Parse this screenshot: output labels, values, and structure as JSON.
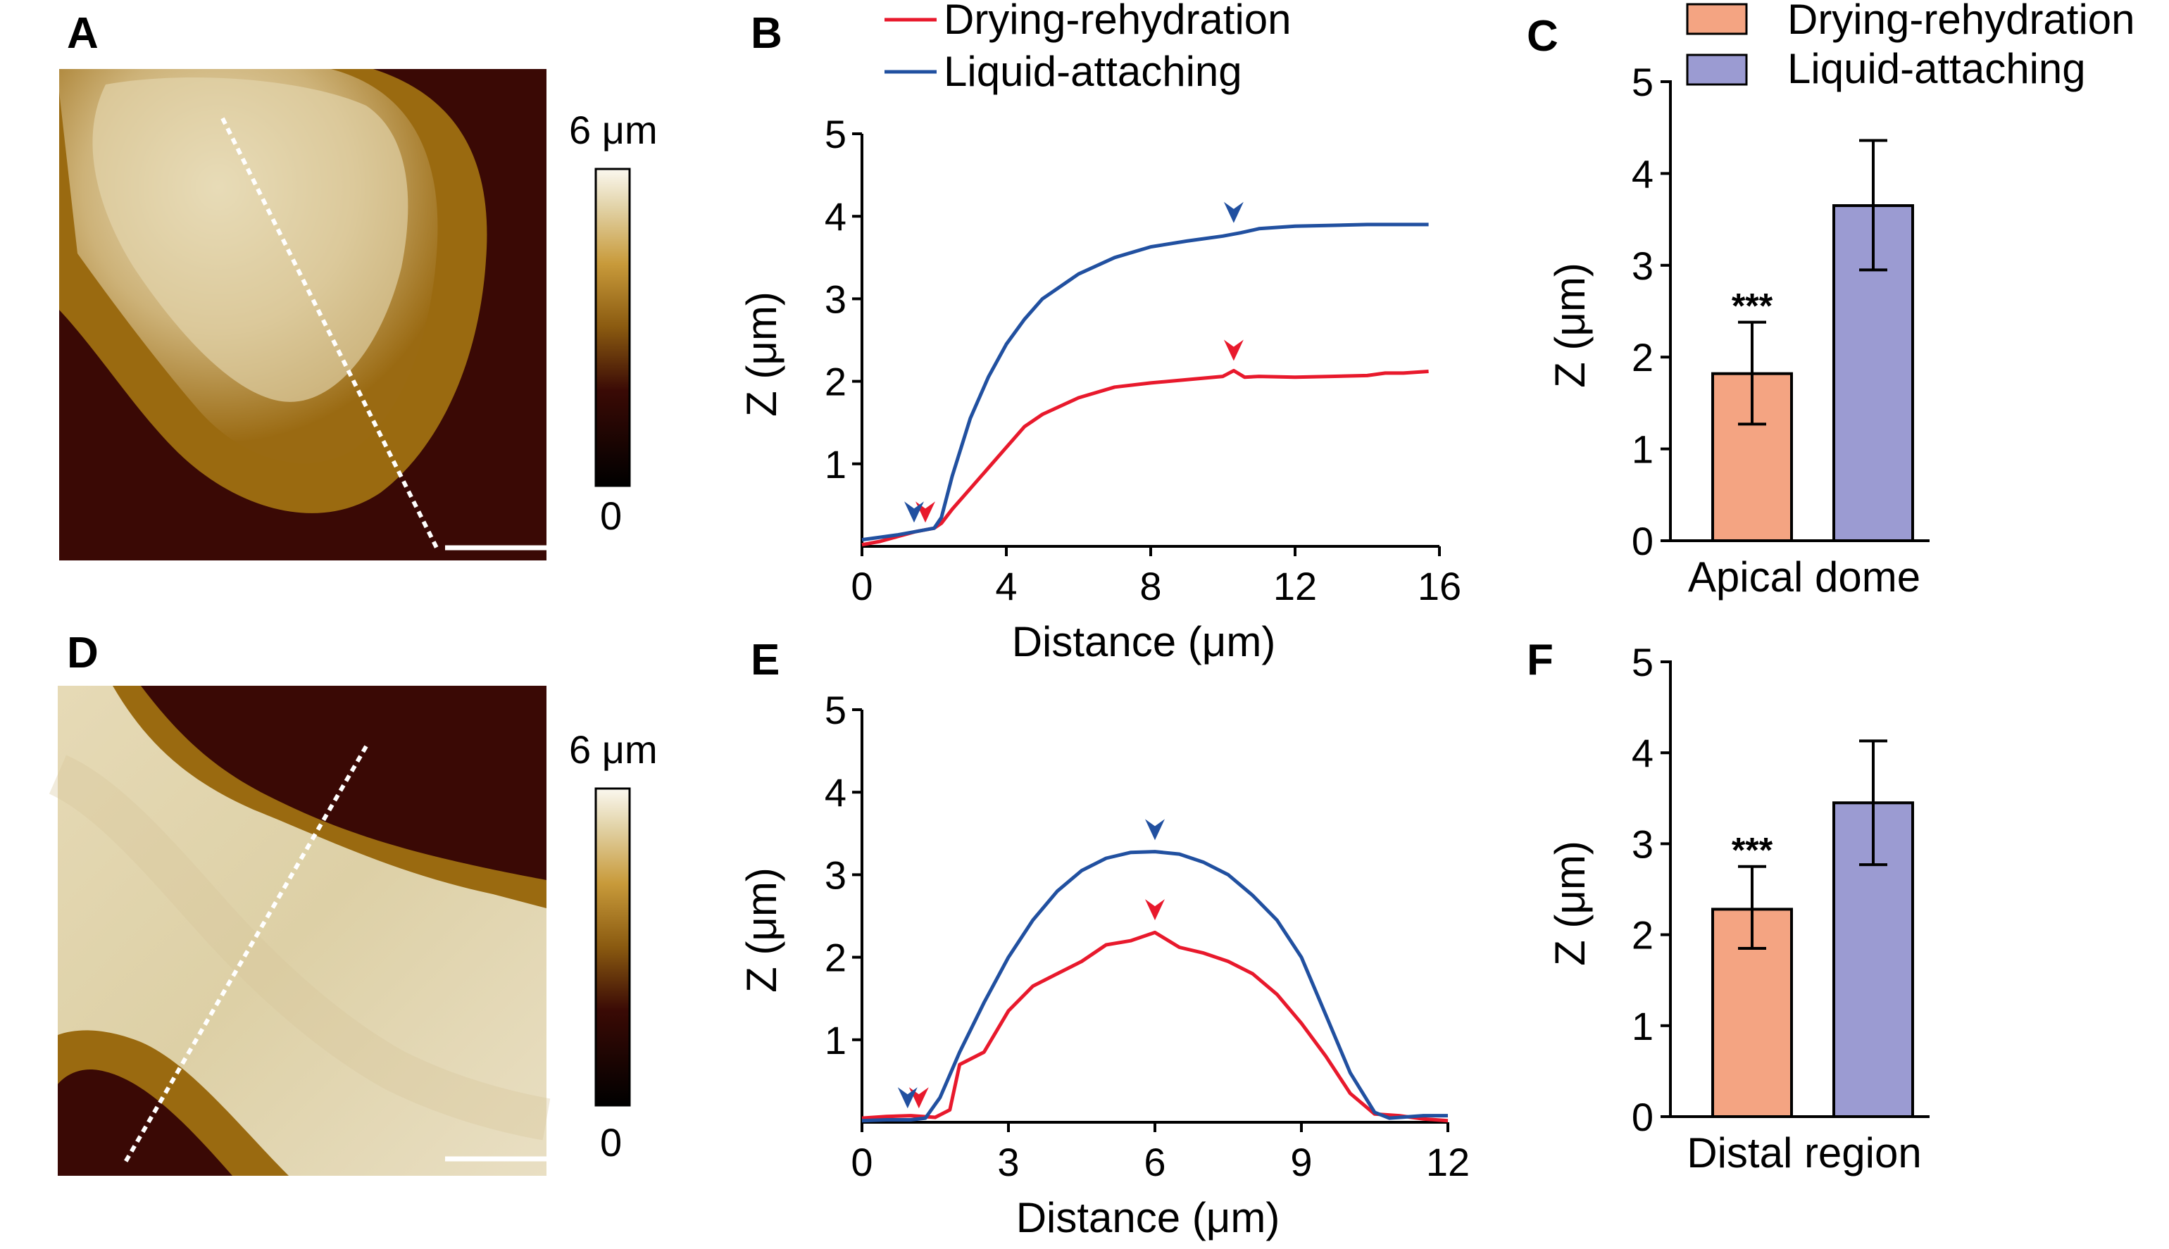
{
  "colors": {
    "drying": "#e8192c",
    "liquid": "#2150a0",
    "bar_drying": "#f4a482",
    "bar_liquid": "#9b9bd2"
  },
  "panels": {
    "A": "A",
    "B": "B",
    "C": "C",
    "D": "D",
    "E": "E",
    "F": "F"
  },
  "colorbar": {
    "max_label": "6 μm",
    "min_label": "0"
  },
  "legend": {
    "drying": "Drying-rehydration",
    "liquid": "Liquid-attaching"
  },
  "chart_data": [
    {
      "id": "B",
      "type": "line",
      "xlabel": "Distance (μm)",
      "ylabel": "Z (μm)",
      "xlim": [
        0,
        16
      ],
      "ylim": [
        0,
        5
      ],
      "xticks": [
        0,
        4,
        8,
        12,
        16
      ],
      "yticks": [
        1,
        2,
        3,
        4,
        5
      ],
      "series": [
        {
          "name": "Drying-rehydration",
          "x": [
            0,
            0.5,
            1,
            1.5,
            2,
            2.2,
            2.5,
            3,
            3.5,
            4,
            4.5,
            5,
            6,
            7,
            8,
            9,
            10,
            10.3,
            10.6,
            11,
            12,
            13,
            14,
            14.5,
            15,
            15.7
          ],
          "y": [
            0.02,
            0.06,
            0.12,
            0.18,
            0.22,
            0.28,
            0.45,
            0.7,
            0.95,
            1.2,
            1.45,
            1.6,
            1.8,
            1.93,
            1.98,
            2.02,
            2.06,
            2.13,
            2.05,
            2.06,
            2.05,
            2.06,
            2.07,
            2.1,
            2.1,
            2.12
          ]
        },
        {
          "name": "Liquid-attaching",
          "x": [
            0,
            0.5,
            1,
            1.5,
            2,
            2.2,
            2.5,
            3,
            3.5,
            4,
            4.5,
            5,
            6,
            7,
            8,
            9,
            10,
            10.5,
            11,
            12,
            13,
            14,
            15,
            15.7
          ],
          "y": [
            0.08,
            0.11,
            0.14,
            0.18,
            0.22,
            0.35,
            0.85,
            1.55,
            2.05,
            2.45,
            2.75,
            3.0,
            3.3,
            3.5,
            3.63,
            3.7,
            3.76,
            3.8,
            3.85,
            3.88,
            3.89,
            3.9,
            3.9,
            3.9
          ]
        }
      ],
      "markers": [
        {
          "series": "Drying-rehydration",
          "x": 1.6,
          "y": 0.22
        },
        {
          "series": "Liquid-attaching",
          "x": 1.6,
          "y": 0.22
        },
        {
          "series": "Drying-rehydration",
          "x": 10.3,
          "y": 2.18
        },
        {
          "series": "Liquid-attaching",
          "x": 10.3,
          "y": 3.85
        }
      ]
    },
    {
      "id": "C",
      "type": "bar",
      "xlabel": "Apical dome",
      "ylabel": "Z (μm)",
      "ylim": [
        0,
        5
      ],
      "yticks": [
        0,
        1,
        2,
        3,
        4,
        5
      ],
      "series": [
        {
          "name": "Drying-rehydration",
          "value": 1.82,
          "err_low": 1.27,
          "err_high": 2.38,
          "annotation": "***"
        },
        {
          "name": "Liquid-attaching",
          "value": 3.65,
          "err_low": 2.95,
          "err_high": 4.36
        }
      ]
    },
    {
      "id": "E",
      "type": "line",
      "xlabel": "Distance (μm)",
      "ylabel": "Z (μm)",
      "xlim": [
        0,
        12
      ],
      "ylim": [
        0,
        5
      ],
      "xticks": [
        0,
        3,
        6,
        9,
        12
      ],
      "yticks": [
        1,
        2,
        3,
        4,
        5
      ],
      "series": [
        {
          "name": "Drying-rehydration",
          "x": [
            0,
            0.5,
            1,
            1.5,
            1.8,
            2.0,
            2.5,
            3,
            3.5,
            4,
            4.5,
            5,
            5.5,
            6,
            6.5,
            7,
            7.5,
            8,
            8.5,
            9,
            9.5,
            10,
            10.5,
            11,
            11.5,
            12
          ],
          "y": [
            0.05,
            0.07,
            0.08,
            0.06,
            0.15,
            0.7,
            0.85,
            1.35,
            1.65,
            1.8,
            1.95,
            2.15,
            2.2,
            2.3,
            2.12,
            2.05,
            1.95,
            1.8,
            1.55,
            1.2,
            0.8,
            0.35,
            0.1,
            0.08,
            0.04,
            0.02
          ]
        },
        {
          "name": "Liquid-attaching",
          "x": [
            0,
            0.5,
            1,
            1.3,
            1.6,
            2,
            2.5,
            3,
            3.5,
            4,
            4.5,
            5,
            5.5,
            6,
            6.5,
            7,
            7.5,
            8,
            8.5,
            9,
            9.5,
            10,
            10.5,
            10.8,
            11.5,
            12
          ],
          "y": [
            0.02,
            0.03,
            0.03,
            0.05,
            0.3,
            0.85,
            1.45,
            2.0,
            2.45,
            2.8,
            3.05,
            3.2,
            3.27,
            3.28,
            3.25,
            3.15,
            3.0,
            2.75,
            2.45,
            2.0,
            1.3,
            0.6,
            0.12,
            0.05,
            0.08,
            0.08
          ]
        }
      ],
      "markers": [
        {
          "series": "Drying-rehydration",
          "x": 1.05,
          "y": 0.1
        },
        {
          "series": "Liquid-attaching",
          "x": 1.05,
          "y": 0.1
        },
        {
          "series": "Drying-rehydration",
          "x": 6.0,
          "y": 2.38
        },
        {
          "series": "Liquid-attaching",
          "x": 6.0,
          "y": 3.35
        }
      ]
    },
    {
      "id": "F",
      "type": "bar",
      "xlabel": "Distal region",
      "ylabel": "Z (μm)",
      "ylim": [
        0,
        5
      ],
      "yticks": [
        0,
        1,
        2,
        3,
        4,
        5
      ],
      "series": [
        {
          "name": "Drying-rehydration",
          "value": 2.28,
          "err_low": 1.85,
          "err_high": 2.75,
          "annotation": "***"
        },
        {
          "name": "Liquid-attaching",
          "value": 3.45,
          "err_low": 2.77,
          "err_high": 4.13
        }
      ]
    }
  ]
}
